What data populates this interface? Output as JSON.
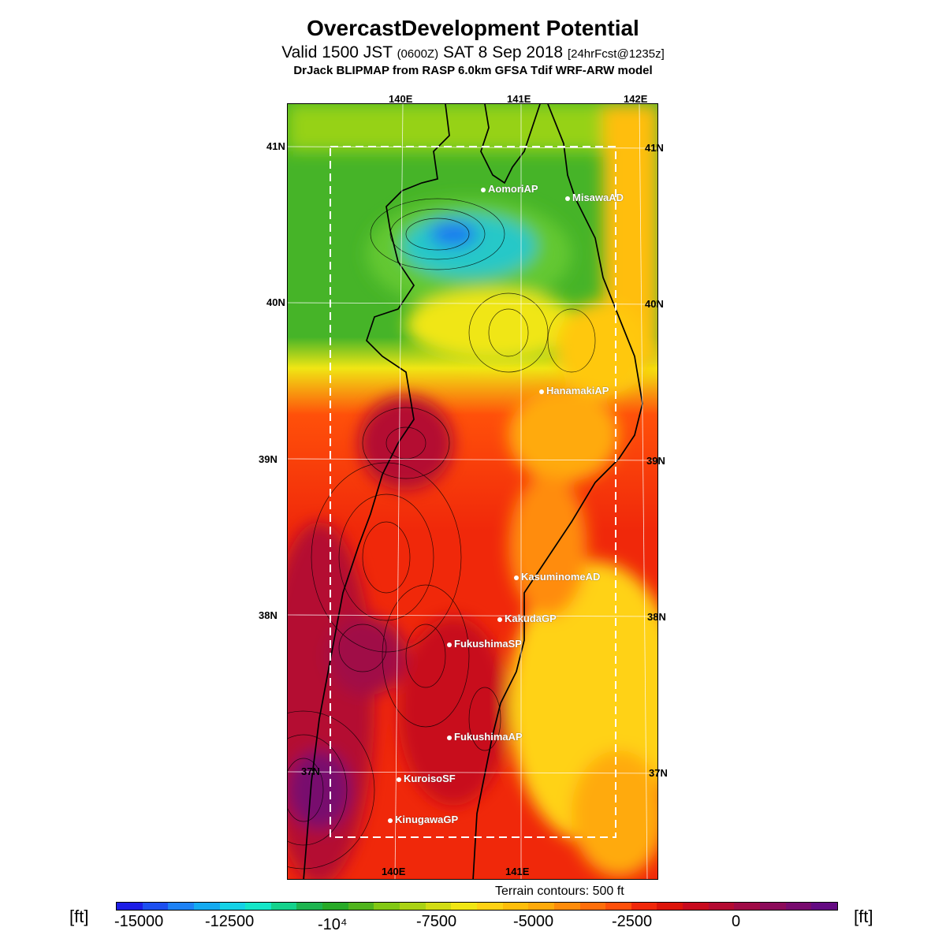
{
  "title": "OvercastDevelopment Potential",
  "subtitle": {
    "a": "Valid 1500 JST",
    "b": "(0600Z)",
    "c": "SAT 8 Sep 2018",
    "d": "[24hrFcst@1235z]"
  },
  "model_line": "DrJack BLIPMAP from RASP 6.0km GFSA Tdif WRF-ARW model",
  "grid": {
    "lon_top": [
      "140E",
      "141E",
      "142E"
    ],
    "lon_bottom": [
      "140E",
      "141E"
    ],
    "lat_left": [
      "41N",
      "40N",
      "39N",
      "38N",
      "37N"
    ],
    "lat_right": [
      "41N",
      "40N",
      "39N",
      "38N",
      "37N"
    ]
  },
  "sites": [
    "AomoriAP",
    "MisawaAD",
    "HanamakiAP",
    "KasuminomeAD",
    "KakudaGP",
    "FukushimaSP",
    "FukushimaAP",
    "KuroisoSF",
    "KinugawaGP"
  ],
  "terrain_note": "Terrain contours: 500 ft",
  "colorbar": {
    "unit_left": "[ft]",
    "unit_right": "[ft]",
    "labels": [
      "-15000",
      "-12500",
      "-10⁴",
      "-7500",
      "-5000",
      "-2500",
      "0"
    ],
    "colors": [
      "#1e1ee6",
      "#1e50f0",
      "#1e82f5",
      "#14aaf0",
      "#14d2e6",
      "#14e6c8",
      "#14d28c",
      "#1eb450",
      "#28aa28",
      "#50b41e",
      "#82c814",
      "#aad214",
      "#d2dc14",
      "#f0e614",
      "#ffd214",
      "#ffbe0a",
      "#ffaa0a",
      "#ff8c0a",
      "#ff6e0a",
      "#ff500a",
      "#f0280a",
      "#dc140a",
      "#c80a1e",
      "#b40a32",
      "#a00a46",
      "#8c0a5a",
      "#780a6e",
      "#640a82"
    ]
  }
}
